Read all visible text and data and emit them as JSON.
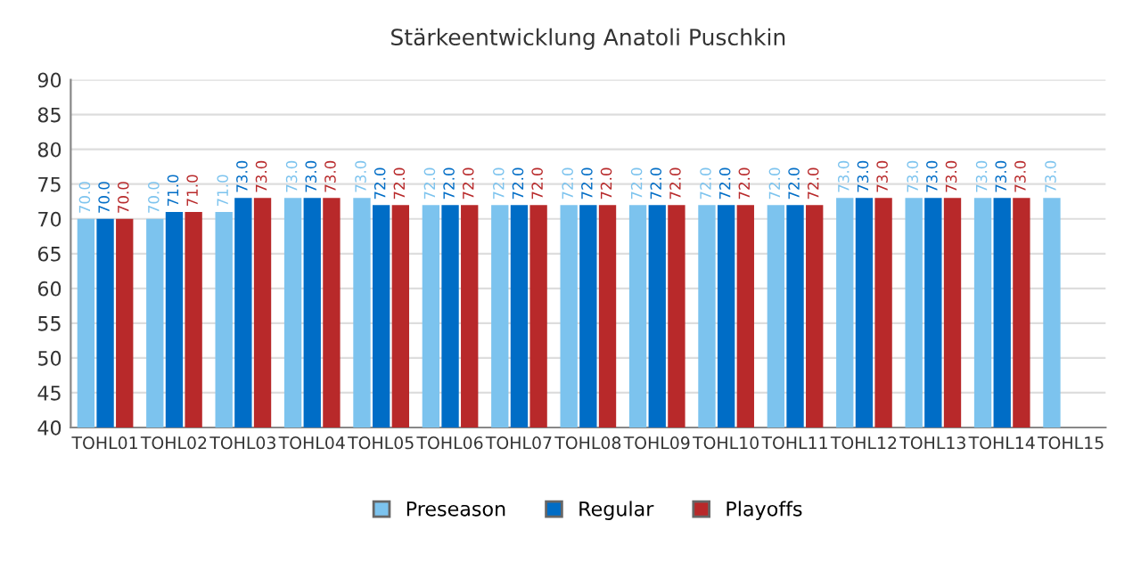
{
  "chart_data": {
    "type": "bar",
    "title": "Stärkeentwicklung Anatoli Puschkin",
    "categories": [
      "TOHL01",
      "TOHL02",
      "TOHL03",
      "TOHL04",
      "TOHL05",
      "TOHL06",
      "TOHL07",
      "TOHL08",
      "TOHL09",
      "TOHL10",
      "TOHL11",
      "TOHL12",
      "TOHL13",
      "TOHL14",
      "TOHL15"
    ],
    "series": [
      {
        "name": "Preseason",
        "color": "#7cc3ee",
        "values": [
          70,
          70,
          71,
          73,
          73,
          72,
          72,
          72,
          72,
          72,
          72,
          73,
          73,
          73,
          73
        ],
        "value_labels": [
          "70.0",
          "70.0",
          "71.0",
          "73.0",
          "73.0",
          "72.0",
          "72.0",
          "72.0",
          "72.0",
          "72.0",
          "72.0",
          "73.0",
          "73.0",
          "73.0",
          "73.0"
        ]
      },
      {
        "name": "Regular",
        "color": "#006dc6",
        "values": [
          70,
          71,
          73,
          73,
          72,
          72,
          72,
          72,
          72,
          72,
          72,
          73,
          73,
          73,
          null
        ],
        "value_labels": [
          "70.0",
          "71.0",
          "73.0",
          "73.0",
          "72.0",
          "72.0",
          "72.0",
          "72.0",
          "72.0",
          "72.0",
          "72.0",
          "73.0",
          "73.0",
          "73.0",
          null
        ]
      },
      {
        "name": "Playoffs",
        "color": "#b8292a",
        "values": [
          70,
          71,
          73,
          73,
          72,
          72,
          72,
          72,
          72,
          72,
          72,
          73,
          73,
          73,
          null
        ],
        "value_labels": [
          "70.0",
          "71.0",
          "73.0",
          "73.0",
          "72.0",
          "72.0",
          "72.0",
          "72.0",
          "72.0",
          "72.0",
          "72.0",
          "73.0",
          "73.0",
          "73.0",
          null
        ]
      }
    ],
    "ylim": [
      40,
      90
    ],
    "yticks": [
      40,
      45,
      50,
      55,
      60,
      65,
      70,
      75,
      80,
      85,
      90
    ],
    "grid": "y",
    "legend": "bottom"
  }
}
